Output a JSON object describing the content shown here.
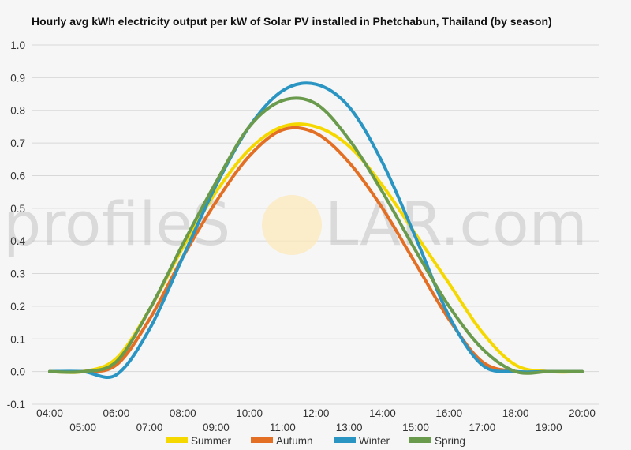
{
  "chart_data": {
    "type": "line",
    "title": "Hourly avg kWh electricity output per kW of Solar PV installed in Phetchabun, Thailand (by season)",
    "xlabel": "",
    "ylabel": "",
    "ylim": [
      -0.1,
      1.0
    ],
    "yticks": [
      "-0.1",
      "0.0",
      "0.1",
      "0.2",
      "0.3",
      "0.4",
      "0.5",
      "0.6",
      "0.7",
      "0.8",
      "0.9",
      "1.0"
    ],
    "categories": [
      "04:00",
      "05:00",
      "06:00",
      "07:00",
      "08:00",
      "09:00",
      "10:00",
      "11:00",
      "12:00",
      "13:00",
      "14:00",
      "15:00",
      "16:00",
      "17:00",
      "18:00",
      "19:00",
      "20:00"
    ],
    "grid": true,
    "legend_position": "bottom",
    "series": [
      {
        "name": "Summer",
        "color": "#f5d800",
        "values": [
          0.0,
          0.0,
          0.04,
          0.19,
          0.38,
          0.55,
          0.68,
          0.75,
          0.75,
          0.69,
          0.57,
          0.42,
          0.27,
          0.12,
          0.02,
          0.0,
          0.0
        ]
      },
      {
        "name": "Autumn",
        "color": "#e36f24",
        "values": [
          0.0,
          0.0,
          0.02,
          0.16,
          0.35,
          0.52,
          0.66,
          0.74,
          0.73,
          0.64,
          0.5,
          0.33,
          0.16,
          0.03,
          0.0,
          0.0,
          0.0
        ]
      },
      {
        "name": "Winter",
        "color": "#2a95c2",
        "values": [
          0.0,
          0.0,
          -0.01,
          0.13,
          0.35,
          0.57,
          0.75,
          0.86,
          0.88,
          0.81,
          0.64,
          0.41,
          0.17,
          0.02,
          0.0,
          0.0,
          0.0
        ]
      },
      {
        "name": "Spring",
        "color": "#6a9a4c",
        "values": [
          0.0,
          0.0,
          0.03,
          0.19,
          0.39,
          0.58,
          0.75,
          0.83,
          0.82,
          0.71,
          0.55,
          0.37,
          0.2,
          0.07,
          0.0,
          0.0,
          0.0
        ]
      }
    ]
  },
  "watermark": {
    "left": "profileS",
    "right": "LAR.com"
  }
}
